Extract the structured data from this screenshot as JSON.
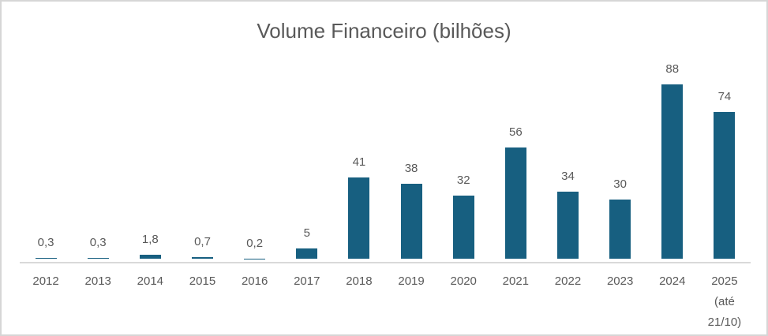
{
  "window": {
    "background": "#ffffff",
    "border_color": "#d6d6d6"
  },
  "chart_data": {
    "type": "bar",
    "title": "Volume Financeiro (bilhões)",
    "title_color": "#595959",
    "categories": [
      "2012",
      "2013",
      "2014",
      "2015",
      "2016",
      "2017",
      "2018",
      "2019",
      "2020",
      "2021",
      "2022",
      "2023",
      "2024",
      "2025 (até 21/10)"
    ],
    "category_lines": [
      [
        "2012"
      ],
      [
        "2013"
      ],
      [
        "2014"
      ],
      [
        "2015"
      ],
      [
        "2016"
      ],
      [
        "2017"
      ],
      [
        "2018"
      ],
      [
        "2019"
      ],
      [
        "2020"
      ],
      [
        "2021"
      ],
      [
        "2022"
      ],
      [
        "2023"
      ],
      [
        "2024"
      ],
      [
        "2025",
        "(até",
        "21/10)"
      ]
    ],
    "values": [
      0.3,
      0.3,
      1.8,
      0.7,
      0.2,
      5,
      41,
      38,
      32,
      56,
      34,
      30,
      88,
      74
    ],
    "value_labels": [
      "0,3",
      "0,3",
      "1,8",
      "0,7",
      "0,2",
      "5",
      "41",
      "38",
      "32",
      "56",
      "34",
      "30",
      "88",
      "74"
    ],
    "xlabel": "",
    "ylabel": "",
    "ylim": [
      0,
      88
    ],
    "grid": false,
    "legend": false,
    "bar_color": "#175f80",
    "label_color": "#595959",
    "axis_color": "#d9d9d9"
  }
}
